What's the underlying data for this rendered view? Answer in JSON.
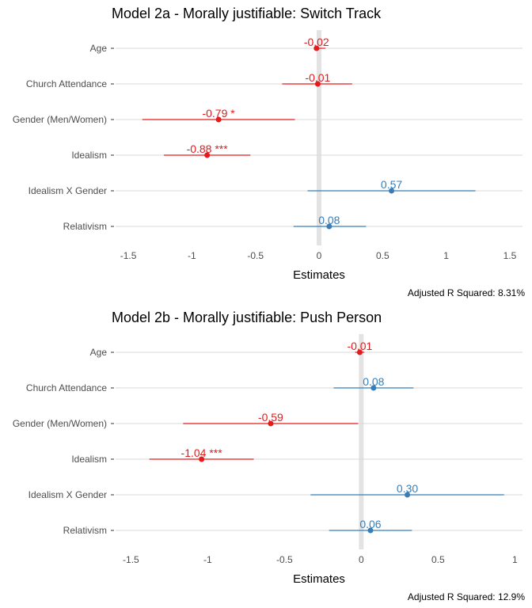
{
  "colors": {
    "negative": "#e41a1c",
    "positive": "#377eb8"
  },
  "chart_data": [
    {
      "type": "forest",
      "title": "Model 2a - Morally justifiable: Switch Track",
      "xlabel": "Estimates",
      "caption": "Adjusted R Squared: 8.31%",
      "xlim": [
        -1.6,
        1.6
      ],
      "x_ticks": [
        -1.5,
        -1,
        -0.5,
        0,
        0.5,
        1,
        1.5
      ],
      "x_tick_labels": [
        "-1.5",
        "-1",
        "-0.5",
        "0",
        "0.5",
        "1",
        "1.5"
      ],
      "terms": [
        {
          "term": "Age",
          "estimate": -0.02,
          "conf_low": -0.04,
          "conf_high": 0.05,
          "label": "-0.02"
        },
        {
          "term": "Church Attendance",
          "estimate": -0.01,
          "conf_low": -0.29,
          "conf_high": 0.26,
          "label": "-0.01"
        },
        {
          "term": "Gender (Men/Women)",
          "estimate": -0.79,
          "conf_low": -1.39,
          "conf_high": -0.19,
          "label": "-0.79 *"
        },
        {
          "term": "Idealism",
          "estimate": -0.88,
          "conf_low": -1.22,
          "conf_high": -0.54,
          "label": "-0.88 ***"
        },
        {
          "term": "Idealism X Gender",
          "estimate": 0.57,
          "conf_low": -0.09,
          "conf_high": 1.23,
          "label": "0.57"
        },
        {
          "term": "Relativism",
          "estimate": 0.08,
          "conf_low": -0.2,
          "conf_high": 0.37,
          "label": "0.08"
        }
      ]
    },
    {
      "type": "forest",
      "title": "Model 2b - Morally justifiable: Push Person",
      "xlabel": "Estimates",
      "caption": "Adjusted R Squared: 12.9%",
      "xlim": [
        -1.6,
        1.05
      ],
      "x_ticks": [
        -1.5,
        -1,
        -0.5,
        0,
        0.5,
        1
      ],
      "x_tick_labels": [
        "-1.5",
        "-1",
        "-0.5",
        "0",
        "0.5",
        "1"
      ],
      "terms": [
        {
          "term": "Age",
          "estimate": -0.01,
          "conf_low": -0.04,
          "conf_high": 0.02,
          "label": "-0.01"
        },
        {
          "term": "Church Attendance",
          "estimate": 0.08,
          "conf_low": -0.18,
          "conf_high": 0.34,
          "label": "0.08"
        },
        {
          "term": "Gender (Men/Women)",
          "estimate": -0.59,
          "conf_low": -1.16,
          "conf_high": -0.02,
          "label": "-0.59"
        },
        {
          "term": "Idealism",
          "estimate": -1.04,
          "conf_low": -1.38,
          "conf_high": -0.7,
          "label": "-1.04 ***"
        },
        {
          "term": "Idealism X Gender",
          "estimate": 0.3,
          "conf_low": -0.33,
          "conf_high": 0.93,
          "label": "0.30"
        },
        {
          "term": "Relativism",
          "estimate": 0.06,
          "conf_low": -0.21,
          "conf_high": 0.33,
          "label": "0.06"
        }
      ]
    }
  ]
}
